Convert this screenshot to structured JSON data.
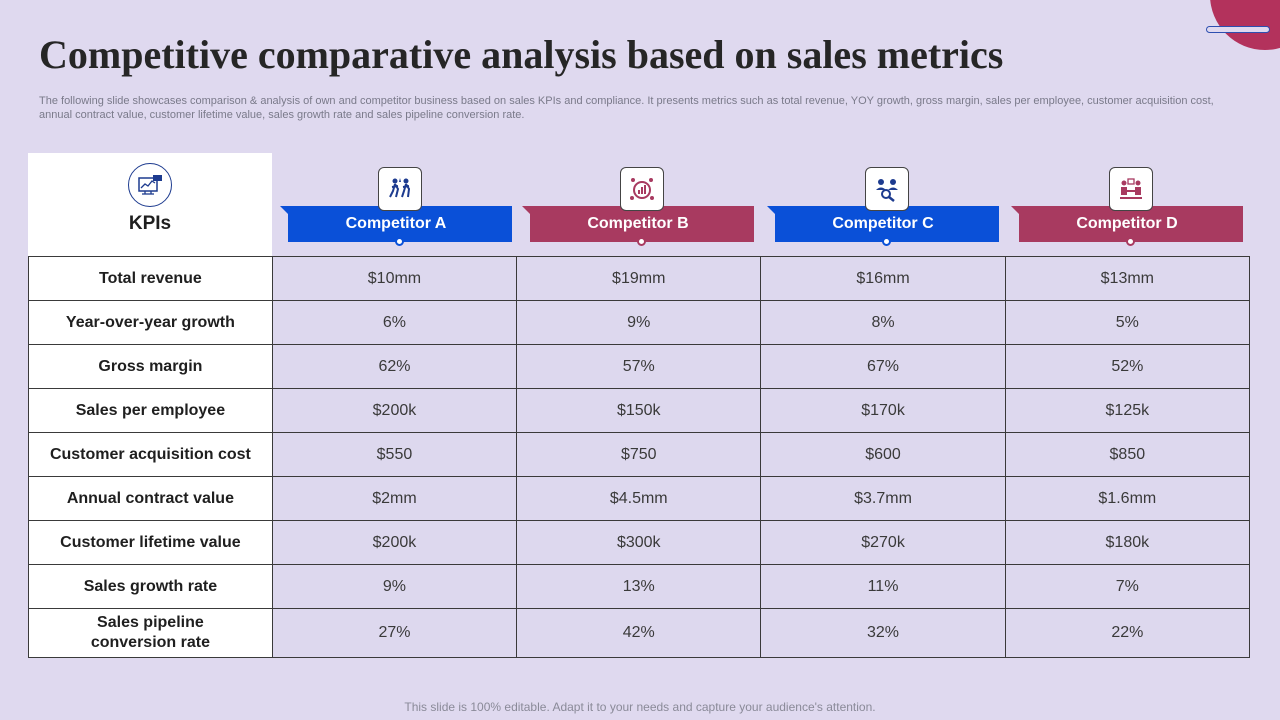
{
  "title": "Competitive comparative analysis based on sales metrics",
  "subtitle": "The following slide showcases comparison & analysis of own and competitor business based on sales KPIs and compliance. It presents metrics such as total revenue, YOY  growth, gross margin, sales per employee, customer acquisition cost, annual contract value, customer lifetime value, sales growth rate and sales pipeline conversion rate.",
  "kpi_header": "KPIs",
  "competitors": [
    {
      "name": "Competitor A",
      "color": "#0a50d8",
      "icon": "people-running-icon"
    },
    {
      "name": "Competitor B",
      "color": "#a83a60",
      "icon": "chart-target-icon"
    },
    {
      "name": "Competitor C",
      "color": "#0a50d8",
      "icon": "people-search-icon"
    },
    {
      "name": "Competitor D",
      "color": "#a83a60",
      "icon": "meeting-icon"
    }
  ],
  "rows": [
    {
      "kpi": "Total revenue",
      "values": [
        "$10mm",
        "$19mm",
        "$16mm",
        "$13mm"
      ]
    },
    {
      "kpi": "Year-over-year growth",
      "values": [
        "6%",
        "9%",
        "8%",
        "5%"
      ]
    },
    {
      "kpi": "Gross margin",
      "values": [
        "62%",
        "57%",
        "67%",
        "52%"
      ]
    },
    {
      "kpi": "Sales per employee",
      "values": [
        "$200k",
        "$150k",
        "$170k",
        "$125k"
      ]
    },
    {
      "kpi": "Customer acquisition cost",
      "values": [
        "$550",
        "$750",
        "$600",
        "$850"
      ]
    },
    {
      "kpi": "Annual contract value",
      "values": [
        "$2mm",
        "$4.5mm",
        "$3.7mm",
        "$1.6mm"
      ]
    },
    {
      "kpi": "Customer lifetime  value",
      "values": [
        "$200k",
        "$300k",
        "$270k",
        "$180k"
      ]
    },
    {
      "kpi": "Sales growth rate",
      "values": [
        "9%",
        "13%",
        "11%",
        "7%"
      ]
    },
    {
      "kpi_line1": "Sales pipeline",
      "kpi_line2": "conversion rate",
      "values": [
        "27%",
        "42%",
        "32%",
        "22%"
      ]
    }
  ],
  "footer": "This slide is 100% editable. Adapt it to your needs and capture your audience's attention."
}
